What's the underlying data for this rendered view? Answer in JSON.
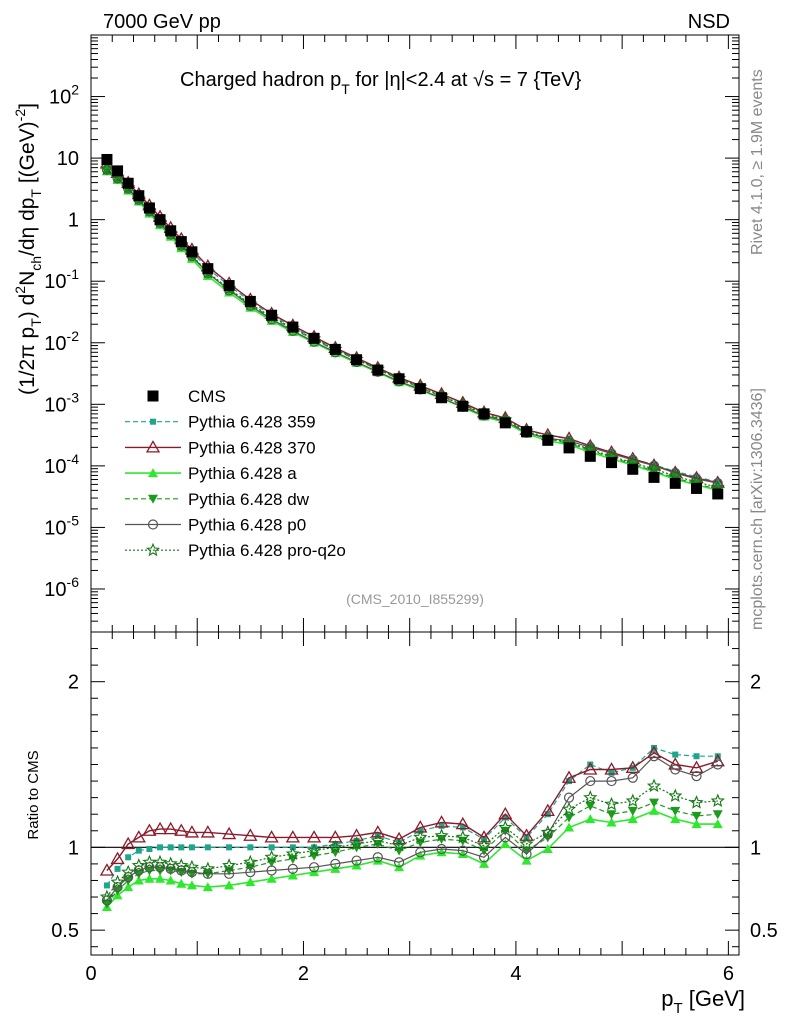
{
  "header": {
    "left": "7000 GeV pp",
    "right": "NSD",
    "rivet": "Rivet 4.1.0, ≥ 1.9M events",
    "mcplots": "mcplots.cern.ch [arXiv:1306.3436]",
    "analysis": "(CMS_2010_I855299)"
  },
  "colors": {
    "cms": "#000000",
    "p359": "#1fa58c",
    "p370": "#8b1a2a",
    "pa": "#2ee82e",
    "pdw": "#1e9a1e",
    "pp0": "#555555",
    "pq2o": "#147814"
  },
  "chart_data": [
    {
      "type": "scatter",
      "title": "Charged hadron pT for |η|<2.4 at √s = 7 {TeV}",
      "title_parts": {
        "a": "Charged hadron p",
        "sub": "T",
        "b": " for |η|<2.4 at √s = 7 {TeV}"
      },
      "ylabel": "(1/2π pT) d²Nch/dη dpT [(GeV)⁻²]",
      "ylabel_parts": [
        "(1/2π p",
        "T",
        ") d",
        "2",
        "N",
        "ch",
        "/dη  dp",
        "T",
        " [(GeV)",
        "-2",
        "]"
      ],
      "yscale": "log",
      "xlim": [
        0,
        6.1
      ],
      "ylim": [
        2e-07,
        1000
      ],
      "y_ticks": [
        "10⁻⁶",
        "10⁻⁵",
        "10⁻⁴",
        "10⁻³",
        "10⁻²",
        "10⁻¹",
        "1",
        "10",
        "10²"
      ],
      "y_tick_parts": [
        [
          "10",
          "-6"
        ],
        [
          "10",
          "-5"
        ],
        [
          "10",
          "-4"
        ],
        [
          "10",
          "-3"
        ],
        [
          "10",
          "-2"
        ],
        [
          "10",
          "-1"
        ],
        [
          "1",
          ""
        ],
        [
          "10",
          ""
        ],
        [
          "10",
          "2"
        ]
      ],
      "legend": [
        {
          "name": "CMS",
          "key": "cms"
        },
        {
          "name": "Pythia 6.428 359",
          "key": "p359"
        },
        {
          "name": "Pythia 6.428 370",
          "key": "p370"
        },
        {
          "name": "Pythia 6.428 a",
          "key": "pa"
        },
        {
          "name": "Pythia 6.428 dw",
          "key": "pdw"
        },
        {
          "name": "Pythia 6.428 p0",
          "key": "pp0"
        },
        {
          "name": "Pythia 6.428 pro-q2o",
          "key": "pq2o"
        }
      ],
      "x": [
        0.15,
        0.25,
        0.35,
        0.45,
        0.55,
        0.65,
        0.75,
        0.85,
        0.95,
        1.1,
        1.3,
        1.5,
        1.7,
        1.9,
        2.1,
        2.3,
        2.5,
        2.7,
        2.9,
        3.1,
        3.3,
        3.5,
        3.7,
        3.9,
        4.1,
        4.3,
        4.5,
        4.7,
        4.9,
        5.1,
        5.3,
        5.5,
        5.7,
        5.9
      ],
      "cms_values": [
        9.5,
        6.2,
        3.9,
        2.45,
        1.55,
        1.0,
        0.66,
        0.44,
        0.3,
        0.16,
        0.085,
        0.047,
        0.028,
        0.018,
        0.0118,
        0.0078,
        0.0053,
        0.0036,
        0.0026,
        0.0018,
        0.00128,
        0.00093,
        0.0007,
        0.0005,
        0.00036,
        0.00026,
        0.000196,
        0.000143,
        0.000113,
        8.8e-05,
        6.5e-05,
        5.2e-05,
        4.3e-05,
        3.5e-05
      ]
    },
    {
      "type": "line",
      "ylabel": "Ratio to CMS",
      "xlabel": "pT [GeV]",
      "xlabel_parts": [
        "p",
        "T",
        " [GeV]"
      ],
      "x_ticks": [
        "0",
        "2",
        "4",
        "6"
      ],
      "y_ticks": [
        "0.5",
        "1",
        "2"
      ],
      "ylim": [
        0.35,
        2.3
      ],
      "x": [
        0.15,
        0.25,
        0.35,
        0.45,
        0.55,
        0.65,
        0.75,
        0.85,
        0.95,
        1.1,
        1.3,
        1.5,
        1.7,
        1.9,
        2.1,
        2.3,
        2.5,
        2.7,
        2.9,
        3.1,
        3.3,
        3.5,
        3.7,
        3.9,
        4.1,
        4.3,
        4.5,
        4.7,
        4.9,
        5.1,
        5.3,
        5.5,
        5.7,
        5.9
      ],
      "series": [
        {
          "name": "Pythia 6.428 359",
          "key": "p359",
          "values": [
            0.77,
            0.87,
            0.94,
            0.98,
            0.99,
            1.0,
            1.0,
            1.0,
            1.0,
            1.0,
            1.0,
            1.0,
            1.0,
            1.0,
            1.0,
            1.02,
            1.04,
            1.07,
            1.03,
            1.1,
            1.13,
            1.12,
            1.05,
            1.18,
            1.06,
            1.2,
            1.4,
            1.5,
            1.45,
            1.48,
            1.6,
            1.56,
            1.55,
            1.55
          ]
        },
        {
          "name": "Pythia 6.428 370",
          "key": "p370",
          "values": [
            0.86,
            0.93,
            1.02,
            1.06,
            1.1,
            1.11,
            1.11,
            1.1,
            1.09,
            1.09,
            1.08,
            1.07,
            1.06,
            1.06,
            1.06,
            1.06,
            1.07,
            1.09,
            1.05,
            1.12,
            1.15,
            1.14,
            1.06,
            1.2,
            1.07,
            1.22,
            1.42,
            1.47,
            1.47,
            1.48,
            1.57,
            1.5,
            1.48,
            1.52
          ]
        },
        {
          "name": "Pythia 6.428 a",
          "key": "pa",
          "values": [
            0.64,
            0.71,
            0.76,
            0.8,
            0.81,
            0.81,
            0.8,
            0.78,
            0.77,
            0.76,
            0.77,
            0.79,
            0.81,
            0.83,
            0.85,
            0.87,
            0.89,
            0.92,
            0.88,
            0.95,
            0.97,
            0.96,
            0.9,
            1.02,
            0.92,
            0.99,
            1.12,
            1.17,
            1.15,
            1.17,
            1.22,
            1.17,
            1.14,
            1.14
          ]
        },
        {
          "name": "Pythia 6.428 dw",
          "key": "pdw",
          "values": [
            0.66,
            0.74,
            0.8,
            0.84,
            0.86,
            0.86,
            0.86,
            0.85,
            0.84,
            0.84,
            0.86,
            0.88,
            0.91,
            0.93,
            0.95,
            0.97,
            1.0,
            1.02,
            0.98,
            1.03,
            1.05,
            1.04,
            0.98,
            1.1,
            0.98,
            1.06,
            1.18,
            1.25,
            1.2,
            1.22,
            1.27,
            1.22,
            1.19,
            1.2
          ]
        },
        {
          "name": "Pythia 6.428 p0",
          "key": "pp0",
          "values": [
            0.68,
            0.76,
            0.82,
            0.86,
            0.88,
            0.88,
            0.87,
            0.86,
            0.85,
            0.84,
            0.84,
            0.85,
            0.86,
            0.87,
            0.88,
            0.9,
            0.92,
            0.94,
            0.91,
            0.97,
            0.99,
            0.98,
            0.94,
            1.06,
            0.96,
            1.08,
            1.3,
            1.4,
            1.4,
            1.42,
            1.55,
            1.47,
            1.43,
            1.5
          ]
        },
        {
          "name": "Pythia 6.428 pro-q2o",
          "key": "pq2o",
          "values": [
            0.7,
            0.79,
            0.85,
            0.89,
            0.91,
            0.91,
            0.9,
            0.89,
            0.88,
            0.87,
            0.89,
            0.91,
            0.94,
            0.96,
            0.98,
            1.0,
            1.02,
            1.04,
            1.01,
            1.06,
            1.07,
            1.06,
            1.01,
            1.12,
            1.02,
            1.09,
            1.23,
            1.3,
            1.26,
            1.28,
            1.37,
            1.31,
            1.27,
            1.28
          ]
        }
      ]
    }
  ]
}
